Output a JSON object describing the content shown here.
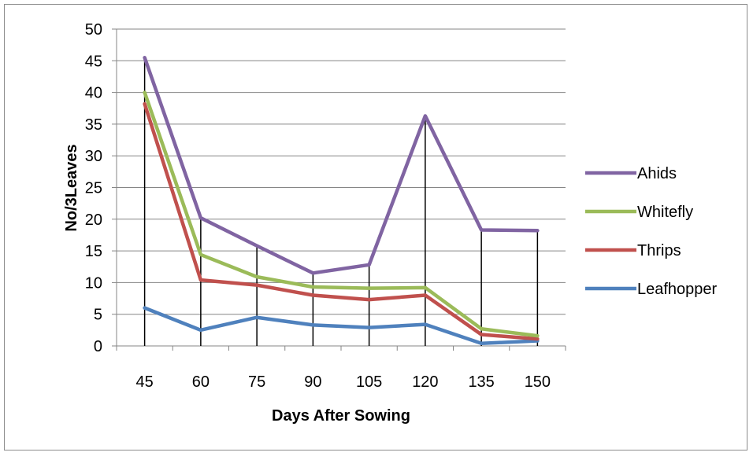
{
  "chart_data": {
    "type": "line",
    "title": "",
    "xlabel": "Days After Sowing",
    "ylabel": "No/3Leaves",
    "categories": [
      "45",
      "60",
      "75",
      "90",
      "105",
      "120",
      "135",
      "150"
    ],
    "ylim": [
      0,
      50
    ],
    "yticks": [
      0,
      5,
      10,
      15,
      20,
      25,
      30,
      35,
      40,
      45,
      50
    ],
    "grid": true,
    "drop_lines": true,
    "legend_position": "right",
    "series": [
      {
        "name": "Ahids",
        "color": "#8064a2",
        "values": [
          45.5,
          20.2,
          15.8,
          11.5,
          12.8,
          36.3,
          18.3,
          18.2
        ]
      },
      {
        "name": "Whitefly",
        "color": "#9bbb59",
        "values": [
          40.0,
          14.4,
          10.9,
          9.3,
          9.1,
          9.2,
          2.7,
          1.6
        ]
      },
      {
        "name": "Thrips",
        "color": "#c0504d",
        "values": [
          38.2,
          10.4,
          9.6,
          8.0,
          7.3,
          8.0,
          1.8,
          1.1
        ]
      },
      {
        "name": "Leafhopper",
        "color": "#4f81bd",
        "values": [
          6.0,
          2.5,
          4.5,
          3.3,
          2.9,
          3.4,
          0.4,
          0.8
        ]
      }
    ]
  }
}
